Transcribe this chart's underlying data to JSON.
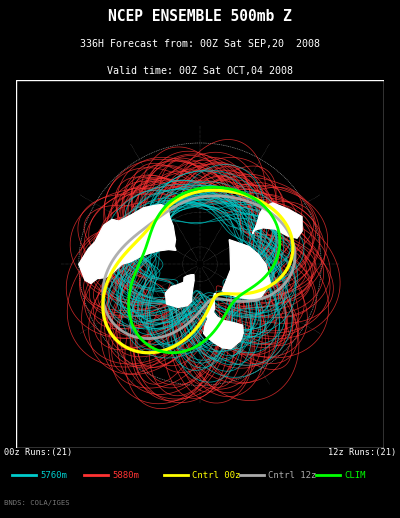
{
  "title_line1": "NCEP ENSEMBLE 500mb Z",
  "title_line2": "336H Forecast from: 00Z Sat SEP,20  2008",
  "title_line3": "Valid time: 00Z Sat OCT,04 2008",
  "footer_left": "00z Runs:(21)",
  "footer_right": "12z Runs:(21)",
  "source_text": "BNDS: COLA/IGES",
  "legend": [
    {
      "label": "5760m",
      "color": "#00CCCC"
    },
    {
      "label": "5880m",
      "color": "#FF3333"
    },
    {
      "label": "Cntrl 00z",
      "color": "#FFFF00"
    },
    {
      "label": "Cntrl 12z",
      "color": "#AAAAAA"
    },
    {
      "label": "CLIM",
      "color": "#00FF00"
    }
  ],
  "bg_color": "#000000",
  "map_bg": "#000000",
  "land_color": "#FFFFFF",
  "border_color": "#FFFFFF",
  "grid_color": "#FFFFFF",
  "title_color": "#FFFFFF",
  "text_color": "#FFFFFF",
  "ensemble_00z_color": "#00CCCC",
  "ensemble_12z_color": "#FF3333",
  "cntrl_00z_color": "#FFFF00",
  "cntrl_12z_color": "#AAAAAA",
  "clim_color": "#00FF00"
}
